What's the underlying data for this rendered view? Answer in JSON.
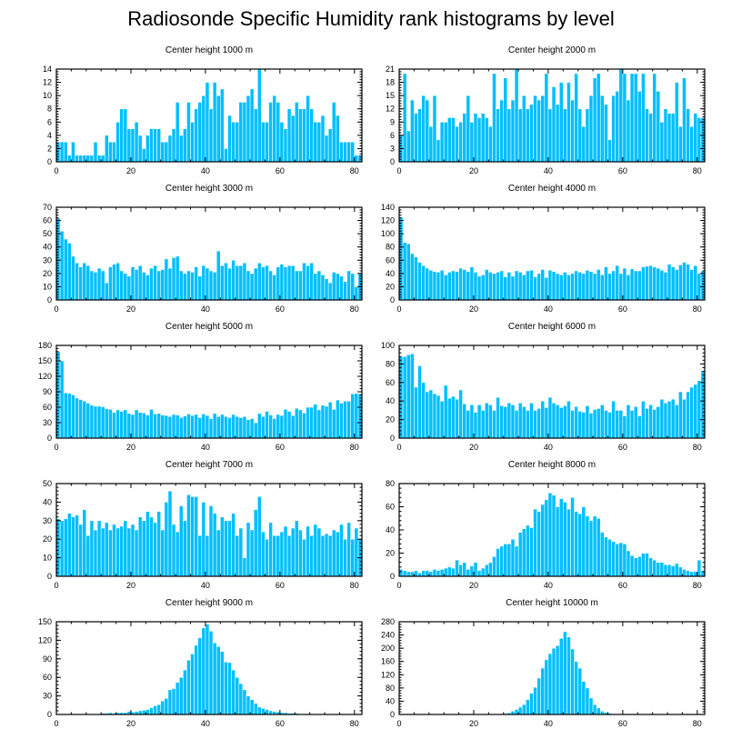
{
  "title": "Radiosonde Specific Humidity rank histograms by level",
  "colors": {
    "bar": "#00bfff",
    "axis": "#000000",
    "background": "#ffffff"
  },
  "chart_data": [
    {
      "type": "bar",
      "title": "Center height 1000 m",
      "xlim": [
        0,
        82
      ],
      "ylim": [
        0,
        14
      ],
      "xticks": [
        0,
        20,
        40,
        60,
        80
      ],
      "yticks": [
        0,
        2,
        4,
        6,
        8,
        10,
        12,
        14
      ],
      "values": [
        3,
        3,
        3,
        1,
        3,
        1,
        1,
        1,
        1,
        1,
        3,
        1,
        1,
        4,
        3,
        3,
        6,
        8,
        8,
        5,
        5,
        6,
        4,
        2,
        4,
        5,
        5,
        5,
        3,
        3,
        4,
        5,
        9,
        4,
        5,
        9,
        6,
        8,
        9,
        10,
        12,
        8,
        12,
        10,
        11,
        2,
        7,
        6,
        6,
        9,
        9,
        10,
        11,
        8,
        14,
        6,
        6,
        9,
        10,
        9,
        6,
        5,
        8,
        7,
        9,
        8,
        8,
        10,
        8,
        6,
        6,
        7,
        4,
        5,
        9,
        7,
        3,
        3,
        3,
        3,
        1,
        1
      ]
    },
    {
      "type": "bar",
      "title": "Center height 2000 m",
      "xlim": [
        0,
        82
      ],
      "ylim": [
        0,
        21
      ],
      "xticks": [
        0,
        20,
        40,
        60,
        80
      ],
      "yticks": [
        0,
        3,
        6,
        9,
        12,
        15,
        18,
        21
      ],
      "values": [
        6,
        20,
        7,
        14,
        11,
        12,
        15,
        14,
        8,
        15,
        5,
        9,
        9,
        10,
        10,
        8,
        9,
        11,
        15,
        9,
        11,
        10,
        11,
        10,
        8,
        20,
        12,
        14,
        19,
        12,
        14,
        21,
        12,
        15,
        12,
        13,
        15,
        14,
        15,
        20,
        12,
        17,
        13,
        18,
        12,
        18,
        14,
        20,
        12,
        8,
        12,
        15,
        19,
        20,
        15,
        13,
        5,
        15,
        16,
        21,
        20,
        14,
        20,
        20,
        16,
        20,
        12,
        11,
        20,
        16,
        9,
        12,
        11,
        11,
        18,
        8,
        19,
        12,
        8,
        11,
        10,
        10
      ]
    },
    {
      "type": "bar",
      "title": "Center height 3000 m",
      "xlim": [
        0,
        82
      ],
      "ylim": [
        0,
        70
      ],
      "xticks": [
        0,
        20,
        40,
        60,
        80
      ],
      "yticks": [
        0,
        10,
        20,
        30,
        40,
        50,
        60,
        70
      ],
      "values": [
        62,
        52,
        46,
        43,
        33,
        28,
        25,
        28,
        26,
        22,
        21,
        24,
        22,
        13,
        25,
        27,
        28,
        22,
        20,
        18,
        25,
        23,
        26,
        21,
        19,
        24,
        26,
        22,
        23,
        31,
        24,
        32,
        33,
        22,
        20,
        22,
        21,
        25,
        18,
        26,
        24,
        22,
        21,
        37,
        26,
        28,
        24,
        30,
        26,
        26,
        28,
        22,
        20,
        24,
        28,
        25,
        26,
        22,
        19,
        25,
        27,
        25,
        26,
        26,
        22,
        22,
        28,
        26,
        28,
        20,
        22,
        19,
        16,
        13,
        21,
        20,
        18,
        14,
        22,
        20,
        10,
        20
      ]
    },
    {
      "type": "bar",
      "title": "Center height 4000 m",
      "xlim": [
        0,
        82
      ],
      "ylim": [
        0,
        140
      ],
      "xticks": [
        0,
        20,
        40,
        60,
        80
      ],
      "yticks": [
        0,
        20,
        40,
        60,
        80,
        100,
        120,
        140
      ],
      "values": [
        125,
        87,
        85,
        70,
        65,
        57,
        52,
        48,
        45,
        43,
        42,
        45,
        38,
        42,
        44,
        43,
        48,
        46,
        43,
        50,
        42,
        36,
        38,
        46,
        42,
        40,
        42,
        44,
        35,
        42,
        36,
        44,
        42,
        38,
        44,
        45,
        35,
        40,
        46,
        34,
        45,
        43,
        40,
        38,
        42,
        38,
        40,
        44,
        42,
        40,
        45,
        43,
        40,
        46,
        38,
        50,
        40,
        44,
        52,
        40,
        48,
        38,
        47,
        44,
        44,
        50,
        51,
        52,
        50,
        48,
        45,
        42,
        54,
        50,
        46,
        53,
        57,
        54,
        46,
        52,
        40,
        44
      ]
    },
    {
      "type": "bar",
      "title": "Center height 5000 m",
      "xlim": [
        0,
        82
      ],
      "ylim": [
        0,
        180
      ],
      "xticks": [
        0,
        20,
        40,
        60,
        80
      ],
      "yticks": [
        0,
        30,
        60,
        90,
        120,
        150,
        180
      ],
      "values": [
        168,
        150,
        88,
        87,
        84,
        78,
        75,
        72,
        68,
        64,
        62,
        62,
        61,
        57,
        56,
        50,
        55,
        52,
        55,
        48,
        46,
        55,
        50,
        49,
        45,
        56,
        47,
        48,
        45,
        44,
        42,
        46,
        45,
        40,
        43,
        47,
        44,
        46,
        40,
        47,
        44,
        38,
        48,
        42,
        46,
        42,
        40,
        46,
        42,
        40,
        42,
        36,
        38,
        30,
        48,
        42,
        52,
        45,
        38,
        46,
        44,
        56,
        52,
        44,
        58,
        55,
        49,
        60,
        60,
        66,
        55,
        64,
        62,
        70,
        56,
        74,
        68,
        72,
        72,
        86,
        87,
        86
      ]
    },
    {
      "type": "bar",
      "title": "Center height 6000 m",
      "xlim": [
        0,
        82
      ],
      "ylim": [
        0,
        100
      ],
      "xticks": [
        0,
        20,
        40,
        60,
        80
      ],
      "yticks": [
        0,
        20,
        40,
        60,
        80,
        100
      ],
      "values": [
        88,
        88,
        90,
        91,
        55,
        78,
        60,
        50,
        52,
        48,
        46,
        40,
        57,
        43,
        45,
        42,
        52,
        37,
        30,
        36,
        28,
        36,
        30,
        38,
        36,
        30,
        44,
        35,
        34,
        38,
        36,
        30,
        38,
        34,
        30,
        38,
        30,
        32,
        40,
        33,
        44,
        38,
        36,
        33,
        35,
        40,
        30,
        34,
        29,
        28,
        35,
        27,
        31,
        32,
        36,
        30,
        28,
        40,
        30,
        30,
        24,
        36,
        30,
        34,
        24,
        40,
        32,
        36,
        31,
        34,
        42,
        38,
        40,
        42,
        36,
        50,
        42,
        50,
        55,
        58,
        62,
        73
      ]
    },
    {
      "type": "bar",
      "title": "Center height 7000 m",
      "xlim": [
        0,
        82
      ],
      "ylim": [
        0,
        50
      ],
      "xticks": [
        0,
        20,
        40,
        60,
        80
      ],
      "yticks": [
        0,
        10,
        20,
        30,
        40,
        50
      ],
      "values": [
        31,
        30,
        31,
        34,
        32,
        33,
        28,
        36,
        22,
        30,
        25,
        30,
        26,
        29,
        25,
        28,
        26,
        27,
        30,
        26,
        28,
        25,
        32,
        30,
        35,
        32,
        29,
        35,
        25,
        40,
        46,
        28,
        24,
        38,
        30,
        44,
        43,
        43,
        22,
        40,
        22,
        38,
        34,
        25,
        32,
        30,
        30,
        34,
        22,
        26,
        10,
        29,
        25,
        36,
        43,
        24,
        20,
        29,
        22,
        22,
        24,
        27,
        22,
        26,
        30,
        25,
        20,
        27,
        22,
        28,
        26,
        22,
        23,
        22,
        25,
        24,
        28,
        20,
        29,
        20,
        26,
        20
      ]
    },
    {
      "type": "bar",
      "title": "Center height 8000 m",
      "xlim": [
        0,
        82
      ],
      "ylim": [
        0,
        80
      ],
      "xticks": [
        0,
        20,
        40,
        60,
        80
      ],
      "yticks": [
        0,
        20,
        40,
        60,
        80
      ],
      "values": [
        6,
        5,
        4,
        4,
        5,
        3,
        5,
        5,
        4,
        6,
        5,
        6,
        7,
        8,
        7,
        14,
        10,
        12,
        6,
        9,
        12,
        5,
        7,
        10,
        12,
        17,
        24,
        26,
        28,
        28,
        32,
        26,
        38,
        41,
        44,
        42,
        58,
        56,
        62,
        66,
        72,
        70,
        60,
        67,
        64,
        58,
        68,
        56,
        54,
        60,
        52,
        48,
        52,
        50,
        38,
        34,
        32,
        30,
        28,
        29,
        28,
        22,
        18,
        16,
        17,
        20,
        20,
        16,
        14,
        12,
        12,
        10,
        10,
        9,
        11,
        8,
        6,
        5,
        4,
        4,
        14,
        5
      ]
    },
    {
      "type": "bar",
      "title": "Center height 9000 m",
      "xlim": [
        0,
        82
      ],
      "ylim": [
        0,
        150
      ],
      "xticks": [
        0,
        20,
        40,
        60,
        80
      ],
      "yticks": [
        0,
        30,
        60,
        90,
        120,
        150
      ],
      "values": [
        0,
        0,
        0,
        0,
        0,
        0,
        0,
        0,
        0,
        0,
        1,
        1,
        2,
        2,
        3,
        2,
        3,
        3,
        3,
        5,
        4,
        5,
        6,
        7,
        8,
        11,
        14,
        16,
        22,
        26,
        40,
        42,
        52,
        60,
        72,
        88,
        98,
        112,
        124,
        140,
        146,
        135,
        116,
        110,
        102,
        85,
        84,
        72,
        60,
        50,
        40,
        30,
        24,
        18,
        12,
        10,
        8,
        6,
        5,
        4,
        3,
        3,
        2,
        2,
        2,
        1,
        1,
        1,
        1,
        1,
        1,
        0,
        1,
        0,
        0,
        0,
        0,
        0,
        0,
        0,
        0,
        0
      ]
    },
    {
      "type": "bar",
      "title": "Center height 10000 m",
      "xlim": [
        0,
        82
      ],
      "ylim": [
        0,
        280
      ],
      "xticks": [
        0,
        20,
        40,
        60,
        80
      ],
      "yticks": [
        0,
        40,
        80,
        120,
        160,
        200,
        240,
        280
      ],
      "values": [
        0,
        0,
        0,
        0,
        0,
        0,
        0,
        0,
        0,
        0,
        0,
        0,
        0,
        0,
        0,
        0,
        0,
        0,
        0,
        0,
        0,
        0,
        0,
        0,
        0,
        1,
        1,
        2,
        3,
        5,
        10,
        15,
        22,
        30,
        45,
        64,
        82,
        110,
        140,
        165,
        184,
        200,
        208,
        230,
        250,
        234,
        198,
        160,
        140,
        100,
        80,
        50,
        30,
        20,
        10,
        6,
        4,
        2,
        2,
        1,
        1,
        0,
        0,
        0,
        0,
        0,
        0,
        0,
        0,
        0,
        0,
        0,
        0,
        0,
        0,
        0,
        0,
        0,
        0,
        0,
        0,
        0
      ]
    }
  ]
}
